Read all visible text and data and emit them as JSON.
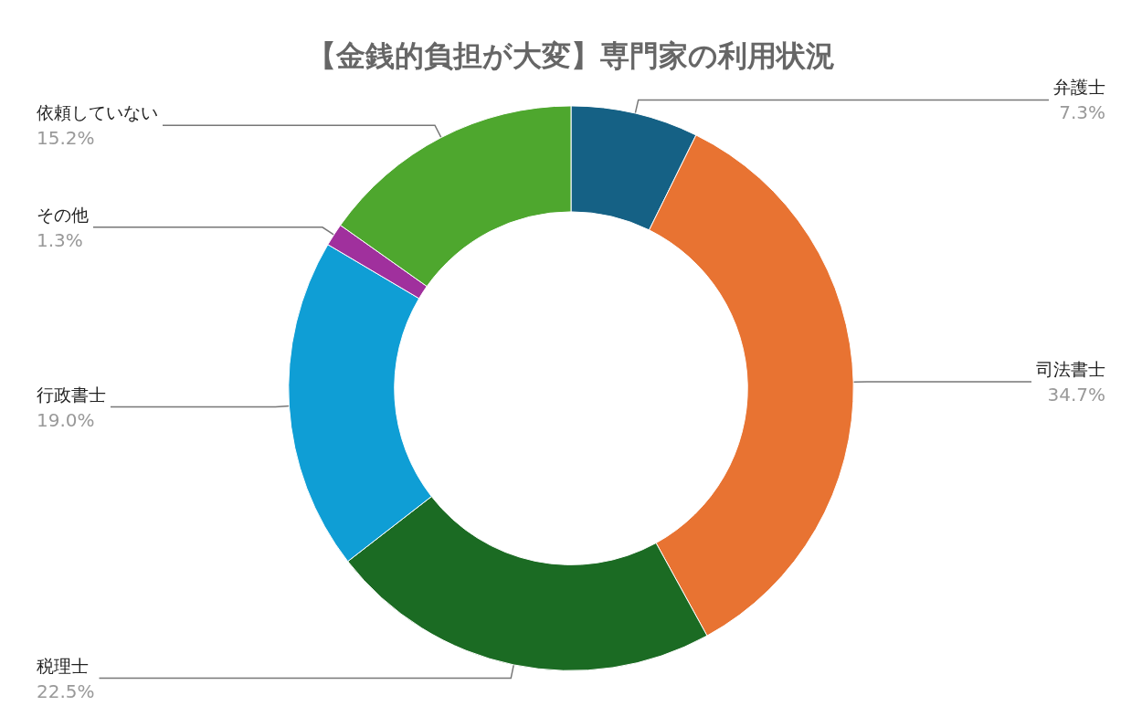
{
  "chart_data": {
    "type": "donut",
    "title": "【金銭的負担が大変】専門家の利用状況",
    "categories": [
      "弁護士",
      "司法書士",
      "税理士",
      "行政書士",
      "その他",
      "依頼していない"
    ],
    "values": [
      7.3,
      34.7,
      22.5,
      19.0,
      1.3,
      15.2
    ],
    "colors": [
      "#156185",
      "#e87332",
      "#1b6b23",
      "#0f9ed5",
      "#a0309d",
      "#4ea72e"
    ],
    "value_labels": [
      "7.3%",
      "34.7%",
      "22.5%",
      "19.0%",
      "1.3%",
      "15.2%"
    ],
    "legend": false
  }
}
